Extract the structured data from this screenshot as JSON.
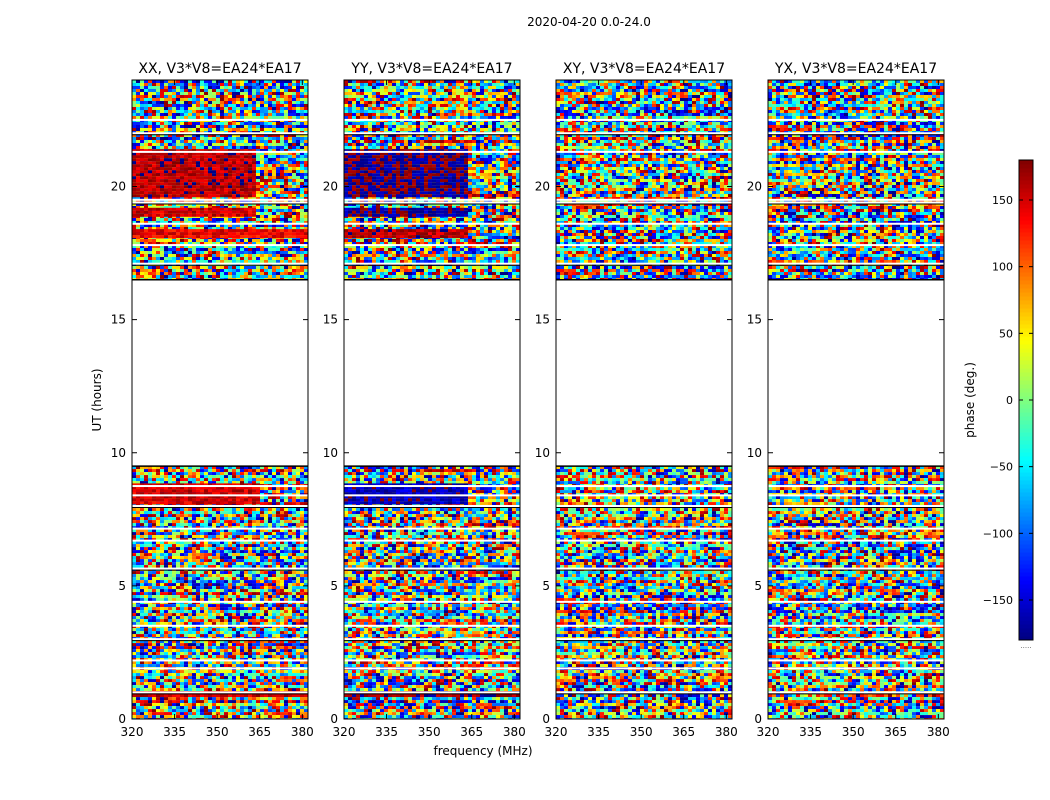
{
  "figure": {
    "suptitle": "2020-04-20 0.0-24.0",
    "xlabel": "frequency (MHz)",
    "ylabel": "UT (hours)"
  },
  "colorbar": {
    "label": "phase (deg.)",
    "range": [
      -180,
      180
    ],
    "ticks": [
      150,
      100,
      50,
      0,
      -50,
      -100,
      -150
    ],
    "tick_labels": [
      "150",
      "100",
      "50",
      "0",
      "−50",
      "−100",
      "−150"
    ],
    "colormap": "jet",
    "colors": [
      "#00007f",
      "#0000ff",
      "#007fff",
      "#00ffff",
      "#7fff7f",
      "#ffff00",
      "#ff7f00",
      "#ff0000",
      "#7f0000"
    ],
    "under_text": "....."
  },
  "chart_data": {
    "type": "heatmap",
    "value": "phase (deg.)",
    "xlim": [
      320,
      382
    ],
    "ylim": [
      0,
      24
    ],
    "xticks": [
      320,
      335,
      350,
      365,
      380
    ],
    "yticks": [
      0,
      5,
      10,
      15,
      20
    ],
    "xtick_labels": [
      "320",
      "335",
      "350",
      "365",
      "380"
    ],
    "ytick_labels": [
      "0",
      "5",
      "10",
      "15",
      "20"
    ],
    "data_blocks_ut": [
      [
        0,
        9.5
      ],
      [
        16.5,
        24
      ]
    ],
    "no_data_ut": [
      9.5,
      16.5
    ],
    "data_gap_ut": [
      1.0,
      1.9,
      2.2,
      3.0,
      3.5,
      4.4,
      5.65,
      6.7,
      7.15,
      8.0,
      8.4,
      8.75,
      17.1,
      17.8,
      18.6,
      19.4,
      19.5,
      21.3,
      22.0,
      22.5
    ],
    "panels": [
      {
        "title": "XX, V3*V8=EA24*EA17",
        "bands": [
          {
            "ut": [
              0.85,
              1.05
            ],
            "phase": 150,
            "freq_max": 382
          },
          {
            "ut": [
              8.1,
              8.85
            ],
            "phase": 150,
            "freq_max": 364
          },
          {
            "ut": [
              18.1,
              18.4
            ],
            "phase": 140,
            "freq_max": 382
          },
          {
            "ut": [
              18.9,
              19.2
            ],
            "phase": 150,
            "freq_max": 363
          },
          {
            "ut": [
              19.6,
              21.4
            ],
            "phase": 160,
            "freq_max": 363
          }
        ]
      },
      {
        "title": "YY, V3*V8=EA24*EA17",
        "bands": [
          {
            "ut": [
              0.85,
              1.05
            ],
            "phase": 175,
            "freq_max": 382
          },
          {
            "ut": [
              8.1,
              8.85
            ],
            "phase": -160,
            "freq_max": 363
          },
          {
            "ut": [
              18.1,
              18.4
            ],
            "phase": 160,
            "freq_max": 363
          },
          {
            "ut": [
              18.9,
              19.2
            ],
            "phase": -170,
            "freq_max": 363
          },
          {
            "ut": [
              19.6,
              21.4
            ],
            "phase": -175,
            "freq_max": 363
          }
        ]
      },
      {
        "title": "XY, V3*V8=EA24*EA17",
        "bands": []
      },
      {
        "title": "YX, V3*V8=EA24*EA17",
        "bands": []
      }
    ]
  }
}
